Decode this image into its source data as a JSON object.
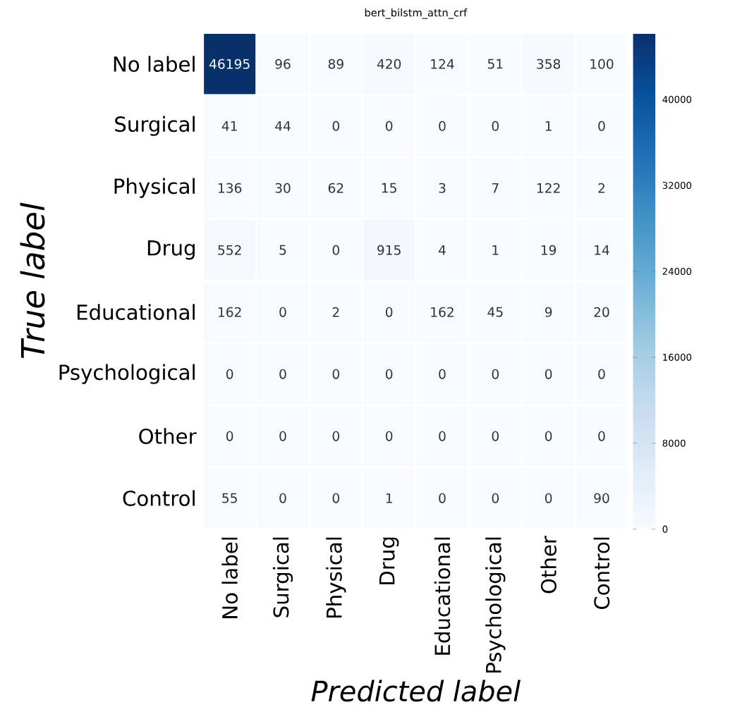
{
  "chart_data": {
    "type": "heatmap",
    "title": "bert_bilstm_attn_crf",
    "xlabel": "Predicted label",
    "ylabel": "True label",
    "categories": [
      "No label",
      "Surgical",
      "Physical",
      "Drug",
      "Educational",
      "Psychological",
      "Other",
      "Control"
    ],
    "y_categories": [
      "No label",
      "Surgical",
      "Physical",
      "Drug",
      "Educational",
      "Psychological",
      "Other",
      "Control"
    ],
    "cells": [
      [
        46195,
        96,
        89,
        420,
        124,
        51,
        358,
        100
      ],
      [
        41,
        44,
        0,
        0,
        0,
        0,
        1,
        0
      ],
      [
        136,
        30,
        62,
        15,
        3,
        7,
        122,
        2
      ],
      [
        552,
        5,
        0,
        915,
        4,
        1,
        19,
        14
      ],
      [
        162,
        0,
        2,
        0,
        162,
        45,
        9,
        20
      ],
      [
        0,
        0,
        0,
        0,
        0,
        0,
        0,
        0
      ],
      [
        0,
        0,
        0,
        0,
        0,
        0,
        0,
        0
      ],
      [
        55,
        0,
        0,
        1,
        0,
        0,
        0,
        90
      ]
    ],
    "data_labels": true,
    "clim": [
      0,
      46195
    ],
    "cticks": [
      0,
      8000,
      16000,
      24000,
      32000,
      40000
    ]
  }
}
